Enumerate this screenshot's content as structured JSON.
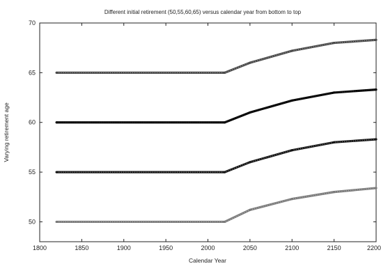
{
  "chart_data": {
    "type": "line",
    "title": "Different  initial retirement (50,55,60,65) versus calendar year from bottom to top",
    "xlabel": "Calendar Year",
    "ylabel": "Varying retirement age",
    "xlim": [
      1800,
      2200
    ],
    "ylim": [
      48,
      70
    ],
    "xticks": [
      1800,
      1850,
      1900,
      1950,
      2000,
      2050,
      2100,
      2150,
      2200
    ],
    "xtick_labels": [
      "1800",
      "1850",
      "1900",
      "1950",
      "2000",
      "2050",
      "2100",
      "2150",
      "2200"
    ],
    "yticks": [
      50,
      55,
      60,
      65,
      70
    ],
    "ytick_labels": [
      "50",
      "55",
      "60",
      "65",
      "70"
    ],
    "grid": false,
    "legend": "none",
    "series": [
      {
        "x": [
          1820,
          2020,
          2050,
          2100,
          2150,
          2200
        ],
        "values": [
          50,
          50,
          51.2,
          52.3,
          53.0,
          53.4
        ],
        "color": "#7a7a7a",
        "style": "marker-dense"
      },
      {
        "x": [
          1820,
          2020,
          2050,
          2100,
          2150,
          2200
        ],
        "values": [
          55,
          55,
          56.0,
          57.2,
          58.0,
          58.3
        ],
        "color": "#151515",
        "style": "marker-dense"
      },
      {
        "x": [
          1820,
          2020,
          2050,
          2100,
          2150,
          2200
        ],
        "values": [
          60,
          60,
          61.0,
          62.2,
          63.0,
          63.3
        ],
        "color": "#050505",
        "style": "marker-dense"
      },
      {
        "x": [
          1820,
          2020,
          2050,
          2100,
          2150,
          2200
        ],
        "values": [
          65,
          65,
          66.0,
          67.2,
          68.0,
          68.3
        ],
        "color": "#4a4a4a",
        "style": "marker-dense"
      }
    ]
  }
}
